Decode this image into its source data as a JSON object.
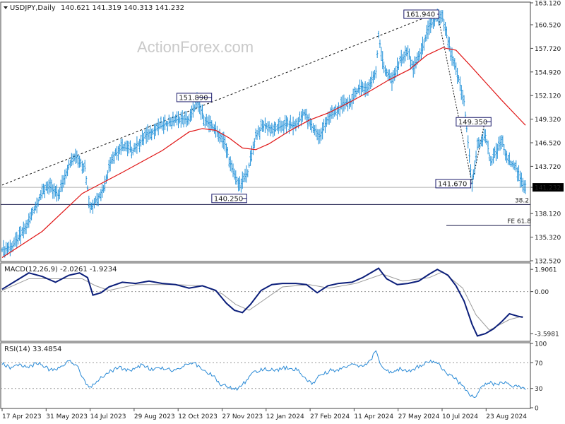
{
  "header": {
    "symbol": "USDJPY,Daily",
    "ohlc": "140.621 141.319 140.313 141.232",
    "watermark": "ActionForex.com"
  },
  "colors": {
    "bar": "#1e8fd8",
    "ma": "#e01515",
    "macd": "#0b1e7a",
    "signal": "#9a9a9a",
    "rsi": "#2a8ad6",
    "level": "#1a1a4a"
  },
  "chart_data": [
    {
      "type": "ohlc",
      "panel": "price",
      "title": "USDJPY,Daily",
      "ylim": [
        132.52,
        163.12
      ],
      "y_ticks": [
        "163.120",
        "160.520",
        "157.720",
        "154.920",
        "152.120",
        "149.320",
        "146.520",
        "143.720",
        "141.232",
        "138.120",
        "135.320",
        "132.520"
      ],
      "x_ticks": [
        "17 Apr 2023",
        "31 May 2023",
        "14 Jul 2023",
        "29 Aug 2023",
        "12 Oct 2023",
        "27 Nov 2023",
        "12 Jan 2024",
        "27 Feb 2024",
        "11 Apr 2024",
        "27 May 2024",
        "10 Jul 2024",
        "23 Aug 2024"
      ],
      "close_path": [
        [
          0,
          133.8
        ],
        [
          8,
          134.3
        ],
        [
          18,
          136.5
        ],
        [
          28,
          140.0
        ],
        [
          34,
          141.5
        ],
        [
          42,
          140.3
        ],
        [
          50,
          144.0
        ],
        [
          56,
          144.9
        ],
        [
          62,
          143.5
        ],
        [
          66,
          138.7
        ],
        [
          70,
          139.6
        ],
        [
          76,
          141.1
        ],
        [
          82,
          144.8
        ],
        [
          90,
          146.0
        ],
        [
          98,
          145.6
        ],
        [
          108,
          147.5
        ],
        [
          118,
          148.4
        ],
        [
          126,
          149.0
        ],
        [
          134,
          149.4
        ],
        [
          140,
          149.2
        ],
        [
          146,
          151.5
        ],
        [
          152,
          149.2
        ],
        [
          158,
          148.3
        ],
        [
          166,
          146.9
        ],
        [
          172,
          143.4
        ],
        [
          178,
          141.4
        ],
        [
          184,
          143.1
        ],
        [
          190,
          147.4
        ],
        [
          196,
          148.6
        ],
        [
          204,
          148.0
        ],
        [
          212,
          148.8
        ],
        [
          220,
          148.5
        ],
        [
          226,
          150.1
        ],
        [
          232,
          148.4
        ],
        [
          238,
          147.3
        ],
        [
          244,
          149.6
        ],
        [
          250,
          150.1
        ],
        [
          256,
          151.2
        ],
        [
          262,
          151.5
        ],
        [
          268,
          153.2
        ],
        [
          274,
          153.0
        ],
        [
          280,
          155.0
        ],
        [
          282,
          159.2
        ],
        [
          286,
          155.4
        ],
        [
          292,
          153.8
        ],
        [
          298,
          156.3
        ],
        [
          304,
          157.3
        ],
        [
          308,
          155.3
        ],
        [
          314,
          157.5
        ],
        [
          320,
          160.4
        ],
        [
          326,
          161.5
        ],
        [
          330,
          161.2
        ],
        [
          334,
          158.6
        ],
        [
          338,
          156.0
        ],
        [
          342,
          154.0
        ],
        [
          346,
          151.4
        ],
        [
          352,
          141.7
        ],
        [
          356,
          146.0
        ],
        [
          362,
          147.4
        ],
        [
          366,
          144.2
        ],
        [
          370,
          145.4
        ],
        [
          374,
          146.9
        ],
        [
          378,
          144.5
        ],
        [
          384,
          143.8
        ],
        [
          390,
          141.6
        ]
      ],
      "high_low_band": 0.9,
      "moving_average": [
        [
          0,
          132.9
        ],
        [
          30,
          136.0
        ],
        [
          60,
          140.5
        ],
        [
          90,
          143.0
        ],
        [
          120,
          145.6
        ],
        [
          140,
          147.8
        ],
        [
          150,
          148.2
        ],
        [
          160,
          148.0
        ],
        [
          170,
          147.1
        ],
        [
          180,
          145.9
        ],
        [
          190,
          145.7
        ],
        [
          200,
          146.4
        ],
        [
          215,
          147.9
        ],
        [
          230,
          149.2
        ],
        [
          245,
          150.1
        ],
        [
          260,
          151.3
        ],
        [
          275,
          152.6
        ],
        [
          290,
          154.0
        ],
        [
          305,
          155.2
        ],
        [
          318,
          156.9
        ],
        [
          330,
          157.8
        ],
        [
          340,
          157.5
        ],
        [
          350,
          155.8
        ],
        [
          362,
          153.7
        ],
        [
          374,
          151.6
        ],
        [
          386,
          149.6
        ],
        [
          392,
          148.6
        ]
      ],
      "trendline_points": [
        [
          0,
          141.5
        ],
        [
          326,
          161.94
        ]
      ],
      "swing_line": [
        [
          326,
          161.94
        ],
        [
          352,
          141.67
        ],
        [
          362,
          149.35
        ]
      ],
      "annotations": [
        {
          "text": "161.940",
          "x": 326,
          "y": 161.94
        },
        {
          "text": "151.890",
          "x": 146,
          "y": 151.89
        },
        {
          "text": "140.250",
          "x": 180,
          "y": 140.25
        },
        {
          "text": "149.350",
          "x": 362,
          "y": 149.35
        },
        {
          "text": "141.670",
          "x": 352,
          "y": 141.67
        }
      ],
      "horizontal_levels": [
        {
          "value": 141.232,
          "label": "141.232",
          "style": "current"
        },
        {
          "value": 139.2,
          "label": "38.2",
          "style": "fib"
        },
        {
          "value": 136.7,
          "label": "FE 61.8",
          "style": "fe"
        }
      ]
    },
    {
      "type": "line",
      "panel": "macd",
      "title": "MACD(12,26,9) -2.0261 -1.9234",
      "ylim": [
        -4.2,
        2.4
      ],
      "y_ticks": [
        "1.9061",
        "0.00",
        "-3.5981"
      ],
      "series": [
        {
          "role": "macd",
          "points": [
            [
              0,
              0.2
            ],
            [
              10,
              0.9
            ],
            [
              20,
              1.6
            ],
            [
              30,
              1.3
            ],
            [
              40,
              0.8
            ],
            [
              50,
              1.4
            ],
            [
              58,
              1.6
            ],
            [
              64,
              1.2
            ],
            [
              68,
              -0.3
            ],
            [
              74,
              -0.1
            ],
            [
              80,
              0.4
            ],
            [
              90,
              0.8
            ],
            [
              100,
              0.7
            ],
            [
              110,
              0.9
            ],
            [
              120,
              0.7
            ],
            [
              130,
              0.6
            ],
            [
              140,
              0.3
            ],
            [
              150,
              0.5
            ],
            [
              160,
              0.1
            ],
            [
              168,
              -1.0
            ],
            [
              174,
              -1.6
            ],
            [
              180,
              -1.8
            ],
            [
              186,
              -1.1
            ],
            [
              194,
              0.1
            ],
            [
              202,
              0.6
            ],
            [
              210,
              0.7
            ],
            [
              220,
              0.7
            ],
            [
              228,
              0.6
            ],
            [
              236,
              -0.1
            ],
            [
              244,
              0.5
            ],
            [
              252,
              0.7
            ],
            [
              262,
              0.8
            ],
            [
              270,
              1.2
            ],
            [
              276,
              1.6
            ],
            [
              282,
              2.0
            ],
            [
              288,
              1.1
            ],
            [
              296,
              0.6
            ],
            [
              304,
              0.7
            ],
            [
              312,
              0.9
            ],
            [
              320,
              1.5
            ],
            [
              326,
              1.9
            ],
            [
              334,
              1.4
            ],
            [
              340,
              0.5
            ],
            [
              346,
              -0.8
            ],
            [
              352,
              -2.8
            ],
            [
              356,
              -3.8
            ],
            [
              362,
              -3.6
            ],
            [
              368,
              -3.2
            ],
            [
              374,
              -2.6
            ],
            [
              380,
              -1.9
            ],
            [
              386,
              -2.1
            ],
            [
              390,
              -2.2
            ]
          ]
        },
        {
          "role": "signal",
          "points": [
            [
              0,
              0.1
            ],
            [
              20,
              1.1
            ],
            [
              40,
              1.1
            ],
            [
              60,
              1.1
            ],
            [
              70,
              0.5
            ],
            [
              80,
              0.1
            ],
            [
              100,
              0.6
            ],
            [
              130,
              0.6
            ],
            [
              150,
              0.5
            ],
            [
              165,
              -0.2
            ],
            [
              175,
              -1.1
            ],
            [
              185,
              -1.6
            ],
            [
              195,
              -0.8
            ],
            [
              210,
              0.4
            ],
            [
              230,
              0.6
            ],
            [
              245,
              0.3
            ],
            [
              265,
              0.7
            ],
            [
              285,
              1.5
            ],
            [
              300,
              0.9
            ],
            [
              320,
              1.2
            ],
            [
              330,
              1.7
            ],
            [
              345,
              0.3
            ],
            [
              355,
              -2.0
            ],
            [
              365,
              -3.3
            ],
            [
              380,
              -2.4
            ],
            [
              390,
              -2.1
            ]
          ]
        }
      ]
    },
    {
      "type": "line",
      "panel": "rsi",
      "title": "RSI(14) 33.4854",
      "ylim": [
        0,
        100
      ],
      "y_ticks": [
        "100",
        "70",
        "30",
        "0"
      ],
      "levels": [
        70,
        30
      ],
      "series": [
        {
          "role": "rsi",
          "points": [
            [
              0,
              70
            ],
            [
              6,
              62
            ],
            [
              12,
              68
            ],
            [
              20,
              64
            ],
            [
              28,
              70
            ],
            [
              36,
              58
            ],
            [
              44,
              62
            ],
            [
              50,
              72
            ],
            [
              56,
              66
            ],
            [
              62,
              40
            ],
            [
              66,
              30
            ],
            [
              72,
              44
            ],
            [
              80,
              56
            ],
            [
              88,
              62
            ],
            [
              96,
              58
            ],
            [
              104,
              66
            ],
            [
              112,
              60
            ],
            [
              120,
              62
            ],
            [
              128,
              58
            ],
            [
              136,
              66
            ],
            [
              144,
              70
            ],
            [
              150,
              58
            ],
            [
              158,
              50
            ],
            [
              164,
              36
            ],
            [
              170,
              32
            ],
            [
              176,
              30
            ],
            [
              182,
              40
            ],
            [
              188,
              54
            ],
            [
              196,
              60
            ],
            [
              204,
              58
            ],
            [
              212,
              62
            ],
            [
              220,
              60
            ],
            [
              228,
              46
            ],
            [
              232,
              36
            ],
            [
              238,
              50
            ],
            [
              246,
              58
            ],
            [
              254,
              60
            ],
            [
              262,
              66
            ],
            [
              270,
              64
            ],
            [
              276,
              74
            ],
            [
              280,
              88
            ],
            [
              284,
              64
            ],
            [
              290,
              56
            ],
            [
              298,
              60
            ],
            [
              306,
              58
            ],
            [
              314,
              66
            ],
            [
              320,
              72
            ],
            [
              326,
              70
            ],
            [
              332,
              54
            ],
            [
              338,
              48
            ],
            [
              344,
              36
            ],
            [
              350,
              22
            ],
            [
              354,
              14
            ],
            [
              358,
              30
            ],
            [
              364,
              40
            ],
            [
              370,
              36
            ],
            [
              376,
              40
            ],
            [
              382,
              32
            ],
            [
              388,
              34
            ],
            [
              392,
              30
            ]
          ]
        }
      ]
    }
  ]
}
